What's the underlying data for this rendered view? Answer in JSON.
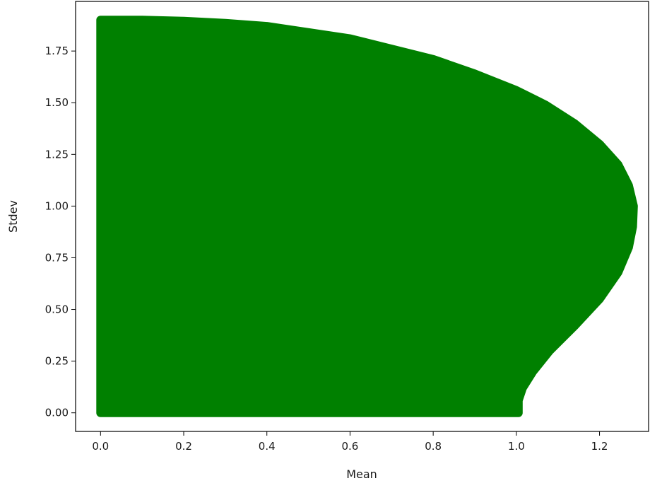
{
  "chart_data": {
    "type": "scatter",
    "title": "",
    "xlabel": "Mean",
    "ylabel": "Stdev",
    "xlim": [
      -0.06,
      1.318
    ],
    "ylim": [
      -0.09,
      1.99
    ],
    "xticks": [
      0.0,
      0.2,
      0.4,
      0.6,
      0.8,
      1.0,
      1.2
    ],
    "xtick_labels": [
      "0.0",
      "0.2",
      "0.4",
      "0.6",
      "0.8",
      "1.0",
      "1.2"
    ],
    "yticks": [
      0.0,
      0.25,
      0.5,
      0.75,
      1.0,
      1.25,
      1.5,
      1.75
    ],
    "ytick_labels": [
      "0.00",
      "0.25",
      "0.50",
      "0.75",
      "1.00",
      "1.25",
      "1.50",
      "1.75"
    ],
    "grid": false,
    "legend": "none",
    "series": [
      {
        "color": "#008000",
        "marker": "circle",
        "description_of_region": "dense filled point cloud",
        "boundary": [
          {
            "x": 0.0,
            "y": 0.0
          },
          {
            "x": 1.005,
            "y": 0.0
          },
          {
            "x": 1.005,
            "y": 0.06
          },
          {
            "x": 1.015,
            "y": 0.12
          },
          {
            "x": 1.04,
            "y": 0.2
          },
          {
            "x": 1.08,
            "y": 0.3
          },
          {
            "x": 1.14,
            "y": 0.42
          },
          {
            "x": 1.2,
            "y": 0.55
          },
          {
            "x": 1.245,
            "y": 0.68
          },
          {
            "x": 1.27,
            "y": 0.8
          },
          {
            "x": 1.28,
            "y": 0.9
          },
          {
            "x": 1.282,
            "y": 1.0
          },
          {
            "x": 1.27,
            "y": 1.1
          },
          {
            "x": 1.245,
            "y": 1.2
          },
          {
            "x": 1.2,
            "y": 1.3
          },
          {
            "x": 1.14,
            "y": 1.4
          },
          {
            "x": 1.07,
            "y": 1.49
          },
          {
            "x": 1.0,
            "y": 1.56
          },
          {
            "x": 0.9,
            "y": 1.64
          },
          {
            "x": 0.8,
            "y": 1.71
          },
          {
            "x": 0.7,
            "y": 1.76
          },
          {
            "x": 0.6,
            "y": 1.81
          },
          {
            "x": 0.5,
            "y": 1.84
          },
          {
            "x": 0.4,
            "y": 1.87
          },
          {
            "x": 0.3,
            "y": 1.885
          },
          {
            "x": 0.2,
            "y": 1.895
          },
          {
            "x": 0.1,
            "y": 1.9
          },
          {
            "x": 0.0,
            "y": 1.9
          }
        ]
      }
    ]
  }
}
